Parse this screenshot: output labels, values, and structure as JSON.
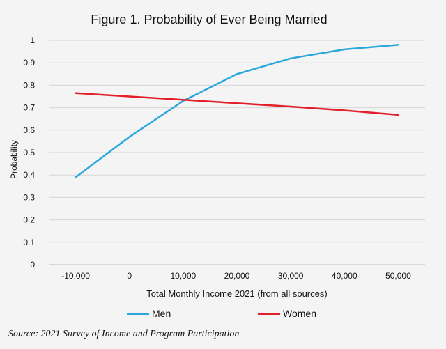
{
  "chart_data": {
    "type": "line",
    "title": "Figure 1. Probability of Ever Being Married",
    "xlabel": "Total Monthly Income 2021 (from all sources)",
    "ylabel": "Probability",
    "x": [
      -10000,
      0,
      10000,
      20000,
      30000,
      40000,
      50000
    ],
    "x_tick_labels": [
      "-10,000",
      "0",
      "10,000",
      "20,000",
      "30,000",
      "40,000",
      "50,000"
    ],
    "y_tick_labels": [
      "0",
      "0.1",
      "0.2",
      "0.3",
      "0.4",
      "0.5",
      "0.6",
      "0.7",
      "0.8",
      "0.9",
      "1"
    ],
    "ylim": [
      0,
      1
    ],
    "grid": true,
    "legend_position": "bottom",
    "series": [
      {
        "name": "Men",
        "color": "#2aa7dc",
        "values": [
          0.39,
          0.57,
          0.73,
          0.85,
          0.92,
          0.96,
          0.98
        ]
      },
      {
        "name": "Women",
        "color": "#e3202a",
        "values": [
          0.765,
          0.75,
          0.735,
          0.72,
          0.705,
          0.688,
          0.668
        ]
      }
    ],
    "source": "Source: 2021 Survey of Income and Program Participation"
  }
}
